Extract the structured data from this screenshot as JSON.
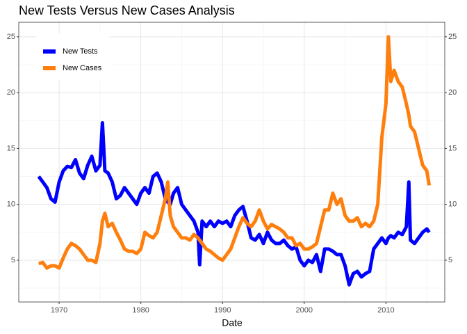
{
  "chart_data": {
    "type": "line",
    "title": "New Tests Versus New Cases Analysis",
    "x_label": "Date",
    "x": [
      1967.5,
      1968,
      1968.5,
      1969,
      1969.5,
      1970,
      1970.5,
      1971,
      1971.5,
      1972,
      1972.5,
      1973,
      1973.5,
      1974,
      1974.5,
      1975,
      1975.3,
      1975.6,
      1976,
      1976.5,
      1977,
      1977.5,
      1978,
      1978.5,
      1979,
      1979.5,
      1980,
      1980.5,
      1981,
      1981.5,
      1982,
      1982.5,
      1983,
      1983.3,
      1983.6,
      1984,
      1984.5,
      1985,
      1985.5,
      1986,
      1986.5,
      1987,
      1987.2,
      1987.5,
      1988,
      1988.5,
      1989,
      1989.5,
      1990,
      1990.5,
      1991,
      1991.5,
      1992,
      1992.5,
      1993,
      1993.5,
      1994,
      1994.5,
      1995,
      1995.5,
      1996,
      1996.5,
      1997,
      1997.5,
      1998,
      1998.5,
      1999,
      1999.5,
      2000,
      2000.5,
      2001,
      2001.5,
      2002,
      2002.5,
      2003,
      2003.5,
      2004,
      2004.5,
      2005,
      2005.5,
      2006,
      2006.5,
      2007,
      2007.5,
      2008,
      2008.5,
      2009,
      2009.5,
      2010,
      2010.3,
      2010.6,
      2011,
      2011.5,
      2012,
      2012.5,
      2012.8,
      2013,
      2013.5,
      2014,
      2014.5,
      2015,
      2015.3
    ],
    "series": [
      {
        "name": "New Tests",
        "color": "#0000ff",
        "values": [
          12.5,
          12.0,
          11.5,
          10.5,
          10.2,
          12.0,
          13.0,
          13.4,
          13.3,
          14.0,
          12.8,
          12.3,
          13.5,
          14.3,
          13.0,
          13.5,
          17.3,
          13.0,
          12.8,
          12.0,
          10.5,
          10.8,
          11.5,
          11.0,
          10.5,
          10.0,
          11.0,
          11.5,
          11.0,
          12.5,
          12.8,
          12.0,
          10.5,
          10.2,
          10.0,
          11.0,
          11.5,
          10.0,
          9.5,
          9.0,
          8.5,
          7.5,
          4.6,
          8.5,
          8.0,
          8.5,
          8.0,
          8.5,
          8.3,
          8.5,
          8.0,
          9.0,
          9.5,
          9.8,
          8.5,
          7.0,
          6.8,
          7.3,
          6.5,
          7.5,
          6.8,
          6.5,
          6.5,
          6.8,
          6.3,
          6.0,
          6.2,
          5.0,
          4.5,
          5.0,
          4.8,
          5.5,
          4.0,
          6.0,
          6.0,
          5.8,
          5.5,
          5.5,
          4.5,
          2.8,
          3.8,
          4.0,
          3.5,
          3.8,
          4.0,
          6.0,
          6.5,
          7.0,
          6.5,
          7.0,
          7.2,
          7.0,
          7.5,
          7.3,
          8.0,
          12.0,
          6.8,
          6.5,
          7.0,
          7.5,
          7.8,
          7.5
        ]
      },
      {
        "name": "New Cases",
        "color": "#ff7f0e",
        "values": [
          4.7,
          4.8,
          4.3,
          4.5,
          4.5,
          4.3,
          5.2,
          6.0,
          6.5,
          6.3,
          6.0,
          5.5,
          5.0,
          5.0,
          4.8,
          6.5,
          8.5,
          9.2,
          8.0,
          8.3,
          7.5,
          6.8,
          6.0,
          5.8,
          5.8,
          5.6,
          6.0,
          7.5,
          7.2,
          7.0,
          7.5,
          9.0,
          10.5,
          12.0,
          9.0,
          8.0,
          7.5,
          7.0,
          7.0,
          6.8,
          7.3,
          7.0,
          6.8,
          6.5,
          6.0,
          5.8,
          5.5,
          5.2,
          5.0,
          5.5,
          6.0,
          7.0,
          8.0,
          8.8,
          8.3,
          8.0,
          8.5,
          9.5,
          8.5,
          7.8,
          8.2,
          8.0,
          7.8,
          7.5,
          7.0,
          7.0,
          6.3,
          6.5,
          6.0,
          6.0,
          6.2,
          6.5,
          8.0,
          9.5,
          9.5,
          11.0,
          10.0,
          10.5,
          9.0,
          8.5,
          8.5,
          8.8,
          8.0,
          8.3,
          8.0,
          8.5,
          10.0,
          16.0,
          19.0,
          25.0,
          21.0,
          22.0,
          21.0,
          20.5,
          19.0,
          18.0,
          17.0,
          16.5,
          15.0,
          13.5,
          13.0,
          11.7
        ]
      }
    ],
    "xlim": [
      1965.06,
      2017.2
    ],
    "xticks": [
      1970,
      1980,
      1990,
      2000,
      2010
    ],
    "ylim": [
      1.26,
      26.3
    ],
    "yticks": [
      5,
      10,
      15,
      20,
      25
    ],
    "y2lim": [
      1.26,
      26.3
    ],
    "y2ticks": [
      5,
      10,
      15,
      20,
      25
    ],
    "grid": true,
    "legend": "top-left"
  }
}
